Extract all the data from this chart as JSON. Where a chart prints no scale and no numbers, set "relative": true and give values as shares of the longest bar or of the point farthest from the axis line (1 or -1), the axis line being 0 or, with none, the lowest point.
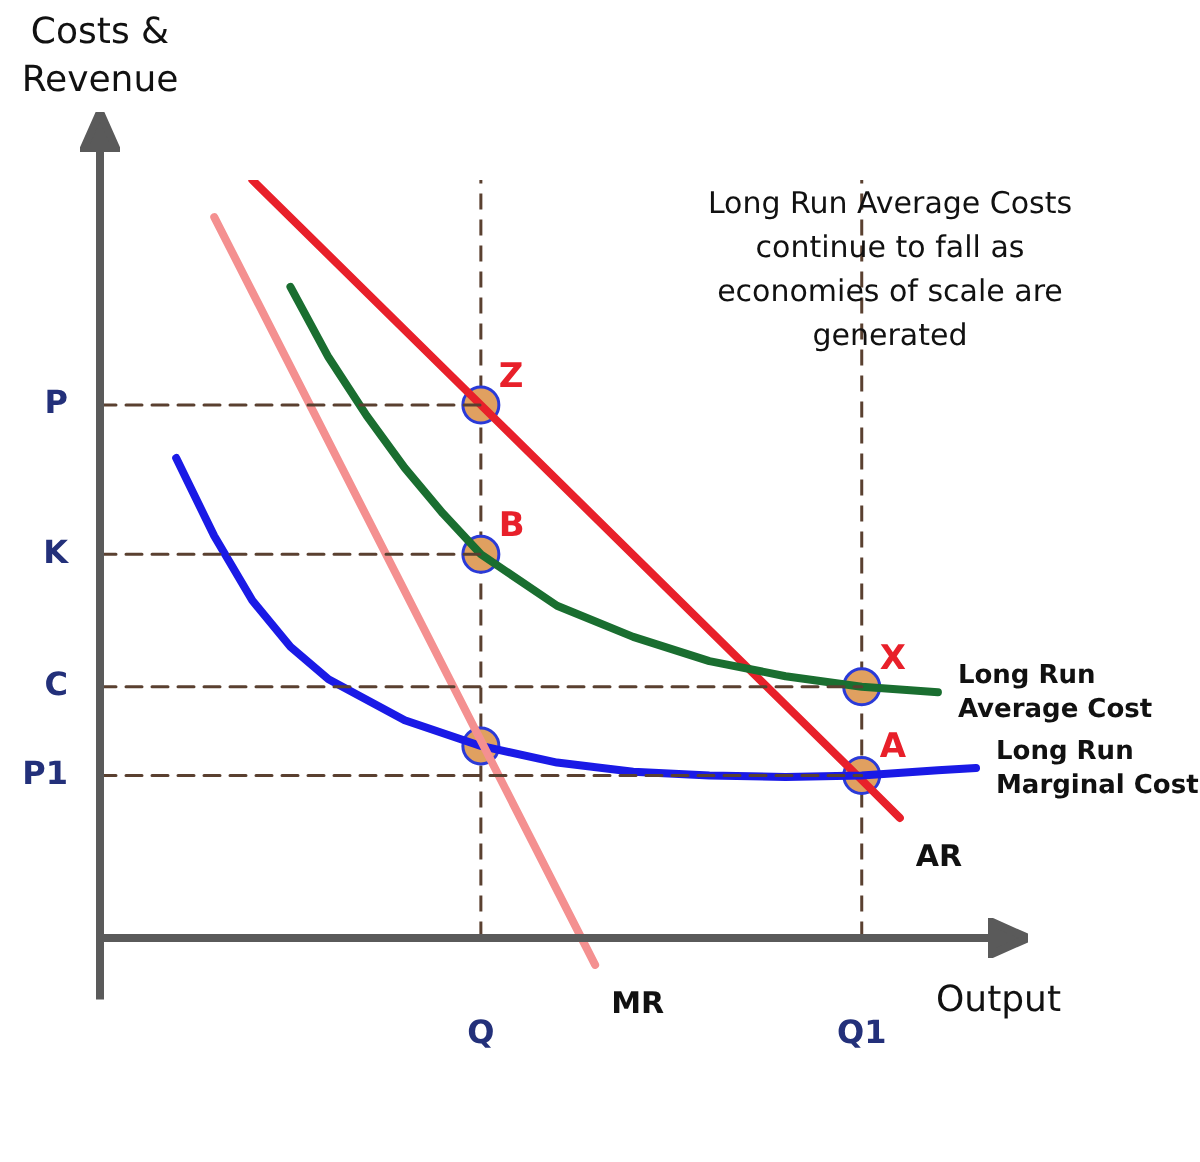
{
  "chart_data": {
    "type": "line",
    "relative": true,
    "xlabel": "Output",
    "ylabel": "Costs & Revenue",
    "categories": [
      null,
      null,
      null,
      null,
      null,
      null,
      null,
      null,
      null,
      null,
      "Q",
      null,
      null,
      null,
      null,
      null,
      null,
      null,
      null,
      null,
      "Q1",
      null,
      null,
      null
    ],
    "grid": false,
    "legend": false,
    "marker": "none",
    "series": [
      {
        "name": "P",
        "line_style": "dashed",
        "color": "#5a4030",
        "values": [
          0.703,
          null,
          null,
          null,
          null,
          null,
          null,
          null,
          null,
          null,
          0.703,
          null,
          null,
          null,
          null,
          null,
          null,
          null,
          null,
          null,
          null,
          null,
          null,
          null
        ]
      },
      {
        "name": "K",
        "line_style": "dashed",
        "color": "#5a4030",
        "values": [
          0.506,
          null,
          null,
          null,
          null,
          null,
          null,
          null,
          null,
          null,
          0.506,
          null,
          null,
          null,
          null,
          null,
          null,
          null,
          null,
          null,
          null,
          null,
          null,
          null
        ]
      },
      {
        "name": "C",
        "line_style": "dashed",
        "color": "#5a4030",
        "values": [
          0.331,
          null,
          null,
          null,
          null,
          null,
          null,
          null,
          null,
          null,
          null,
          null,
          null,
          null,
          null,
          null,
          null,
          null,
          null,
          null,
          0.331,
          null,
          null,
          null
        ]
      },
      {
        "name": "P1",
        "line_style": "dashed",
        "color": "#5a4030",
        "values": [
          0.214,
          null,
          null,
          null,
          null,
          null,
          null,
          null,
          null,
          null,
          null,
          null,
          null,
          null,
          null,
          null,
          null,
          null,
          null,
          null,
          0.214,
          null,
          null,
          null
        ]
      },
      {
        "name": "MR",
        "color": "#f49090",
        "values": [
          null,
          null,
          null,
          0.951,
          null,
          null,
          null,
          null,
          null,
          null,
          null,
          null,
          null,
          -0.036,
          null,
          null,
          null,
          null,
          null,
          null,
          null,
          null,
          null,
          null
        ]
      },
      {
        "name": "Long Run Average Cost",
        "color": "#1a6e30",
        "values": [
          null,
          null,
          null,
          null,
          null,
          0.859,
          0.766,
          0.689,
          0.62,
          0.56,
          0.506,
          null,
          0.438,
          null,
          0.397,
          null,
          0.365,
          null,
          0.345,
          null,
          0.331,
          null,
          0.324,
          null
        ]
      },
      {
        "name": "Long Run Marginal Cost",
        "color": "#1a1ae6",
        "values": [
          null,
          null,
          0.633,
          0.53,
          0.445,
          0.384,
          0.341,
          null,
          0.287,
          null,
          0.253,
          null,
          0.231,
          null,
          0.219,
          null,
          0.214,
          null,
          0.212,
          null,
          0.214,
          null,
          0.221,
          0.224
        ]
      },
      {
        "name": "AR",
        "color": "#e8202a",
        "values": [
          null,
          null,
          null,
          null,
          1,
          null,
          null,
          null,
          null,
          null,
          0.703,
          null,
          null,
          null,
          null,
          null,
          null,
          null,
          null,
          null,
          0.208,
          0.158,
          null,
          null
        ]
      },
      {
        "type": "scatter",
        "marker": "circle",
        "color": "#e0a060",
        "values": [
          null,
          null,
          null,
          null,
          null,
          null,
          null,
          null,
          null,
          null,
          0.703,
          null,
          null,
          null,
          null,
          null,
          null,
          null,
          null,
          null,
          0.214,
          null,
          null,
          null
        ]
      },
      {
        "type": "scatter",
        "marker": "circle",
        "color": "#e0a060",
        "values": [
          null,
          null,
          null,
          null,
          null,
          null,
          null,
          null,
          null,
          null,
          0.506,
          null,
          null,
          null,
          null,
          null,
          null,
          null,
          null,
          null,
          0.331,
          null,
          null,
          null
        ]
      },
      {
        "type": "scatter",
        "marker": "circle",
        "color": "#e0a060",
        "values": [
          null,
          null,
          null,
          null,
          null,
          null,
          null,
          null,
          null,
          null,
          0.253,
          null,
          null,
          null,
          null,
          null,
          null,
          null,
          null,
          null,
          null,
          null,
          null,
          null
        ]
      }
    ],
    "ref_lines": [
      {
        "axis": "x",
        "value": "Q",
        "line_style": "dashed",
        "color": "#5a4030"
      },
      {
        "axis": "x",
        "value": "Q1",
        "line_style": "dashed",
        "color": "#5a4030"
      }
    ],
    "annotations": [
      "Long Run Average Costs continue to fall as economies of scale are generated",
      {
        "text": "Z",
        "x": "Q",
        "y": 0.703
      },
      {
        "text": "B",
        "x": "Q",
        "y": 0.506
      },
      {
        "text": "X",
        "x": "Q1",
        "y": 0.331
      },
      {
        "text": "A",
        "x": "Q1",
        "y": 0.214
      }
    ]
  }
}
